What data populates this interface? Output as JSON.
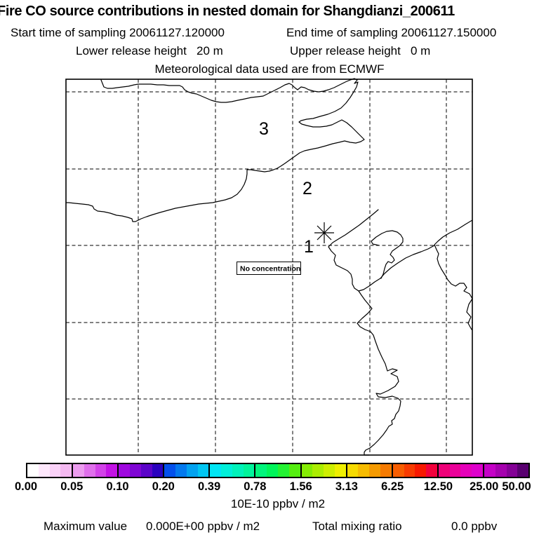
{
  "header": {
    "title": "Fire CO source contributions in nested domain for Shangdianzi_200611",
    "start_time": "Start time of sampling 20061127.120000",
    "end_time": "End time of sampling 20061127.150000",
    "lower_release": "Lower release height   20 m",
    "upper_release": "Upper release height   0 m",
    "met_data": "Meteorological data used are from ECMWF"
  },
  "map": {
    "annotation": "No concentration",
    "receptor_labels": {
      "l1": "1",
      "l2": "2",
      "l3": "3"
    },
    "marker": "release-site-asterisk"
  },
  "legend": {
    "tick_labels": [
      "0.00",
      "0.05",
      "0.10",
      "0.20",
      "0.39",
      "0.78",
      "1.56",
      "3.13",
      "6.25",
      "12.50",
      "25.00",
      "50.00"
    ],
    "units_label": "10E-10 ppbv / m2",
    "segments": [
      [
        "#FFFFFF",
        "#FEE8FC",
        "#FAD2F8",
        "#F4B9F1"
      ],
      [
        "#EC9CEF",
        "#DF6FEB",
        "#D242E8",
        "#C312E5"
      ],
      [
        "#9F08DF",
        "#7F05D4",
        "#5B03C9",
        "#2A01BF"
      ],
      [
        "#0350EC",
        "#0379EE",
        "#02A2F0",
        "#01C6F2"
      ],
      [
        "#00E6F4",
        "#00EFD9",
        "#00F2BA",
        "#00F49B"
      ],
      [
        "#00F57C",
        "#00F55A",
        "#24F233",
        "#55EE10"
      ],
      [
        "#85EC04",
        "#ABED02",
        "#CEEE01",
        "#EFEF00"
      ],
      [
        "#F6DA00",
        "#F6BB00",
        "#F59A00",
        "#F57A00"
      ],
      [
        "#F75D00",
        "#F73B00",
        "#F71800",
        "#F2003C"
      ],
      [
        "#EE0078",
        "#EA0099",
        "#E500B9",
        "#DE00CB"
      ],
      [
        "#C400C6",
        "#A500AE",
        "#840096",
        "#590070"
      ]
    ]
  },
  "footer": {
    "max_label": "Maximum value",
    "max_value": "0.000E+00 ppbv / m2",
    "tmr_label": "Total mixing ratio",
    "tmr_value": "0.0 ppbv"
  },
  "chart_data": {
    "type": "heatmap",
    "title": "Fire CO source contributions in nested domain for Shangdianzi_200611",
    "subtitle": [
      "Start time of sampling 20061127.120000",
      "End time of sampling 20061127.150000",
      "Lower release height 20 m",
      "Upper release height 0 m",
      "Meteorological data used are from ECMWF"
    ],
    "legend_levels": [
      0.0,
      0.05,
      0.1,
      0.2,
      0.39,
      0.78,
      1.56,
      3.13,
      6.25,
      12.5,
      25.0,
      50.0
    ],
    "legend_units": "10E-10 ppbv / m2",
    "field_values": "all zero (No concentration shown anywhere on the map)",
    "annotations": [
      "No concentration"
    ],
    "map_markers": [
      {
        "label": "1",
        "type": "receptor-ring-number"
      },
      {
        "label": "2",
        "type": "receptor-ring-number"
      },
      {
        "label": "3",
        "type": "receptor-ring-number"
      },
      {
        "label": "*",
        "type": "release-site"
      }
    ],
    "maximum_value": "0.000E+00 ppbv / m2",
    "total_mixing_ratio": "0.0 ppbv",
    "grid": "dashed lat/lon graticule, 5 vertical x 5 horizontal lines",
    "legend_position": "bottom horizontal colorbar"
  }
}
